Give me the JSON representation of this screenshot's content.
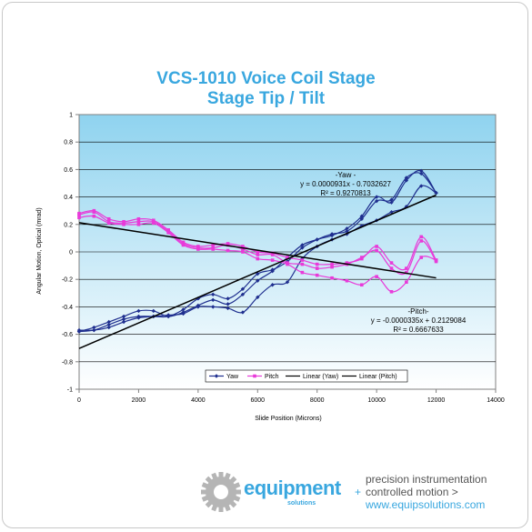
{
  "chart_data": {
    "type": "line",
    "title": "VCS-1010 Voice Coil Stage",
    "subtitle": "Stage Tip / Tilt",
    "xlabel": "Slide Position (Microns)",
    "ylabel": "Angular Motion, Optical (mrad)",
    "xlim": [
      0,
      14000
    ],
    "ylim": [
      -1,
      1
    ],
    "xticks": [
      0,
      2000,
      4000,
      6000,
      8000,
      10000,
      12000,
      14000
    ],
    "yticks": [
      -1,
      -0.8,
      -0.6,
      -0.4,
      -0.2,
      0,
      0.2,
      0.4,
      0.6,
      0.8,
      1
    ],
    "grid": true,
    "legend_position": "bottom-center",
    "legend": [
      "Yaw",
      "Pitch",
      "Linear (Yaw)",
      "Linear (Pitch)"
    ],
    "series": [
      {
        "name": "Yaw",
        "color": "#1f2f8f",
        "x": [
          0,
          500,
          1000,
          1500,
          2000,
          2500,
          3000,
          3500,
          4000,
          4500,
          5000,
          5500,
          6000,
          6500,
          7000,
          7500,
          8000,
          8500,
          9000,
          9500,
          10000,
          10500,
          11000,
          11500,
          12000
        ],
        "y": [
          -0.58,
          -0.55,
          -0.51,
          -0.47,
          -0.43,
          -0.43,
          -0.47,
          -0.44,
          -0.39,
          -0.35,
          -0.38,
          -0.31,
          -0.21,
          -0.14,
          -0.04,
          0.05,
          0.09,
          0.12,
          0.17,
          0.26,
          0.4,
          0.36,
          0.52,
          0.59,
          0.43
        ]
      },
      {
        "name": "Yaw",
        "color": "#1f2f8f",
        "x": [
          0,
          500,
          1000,
          1500,
          2000,
          2500,
          3000,
          3500,
          4000,
          4500,
          5000,
          5500,
          6000,
          6500,
          7000,
          7500,
          8000,
          8500,
          9000,
          9500,
          10000,
          10500,
          11000,
          11500,
          12000
        ],
        "y": [
          -0.58,
          -0.57,
          -0.53,
          -0.49,
          -0.47,
          -0.47,
          -0.47,
          -0.42,
          -0.34,
          -0.31,
          -0.34,
          -0.27,
          -0.16,
          -0.13,
          -0.07,
          0.03,
          0.09,
          0.13,
          0.15,
          0.24,
          0.37,
          0.38,
          0.54,
          0.57,
          0.43
        ]
      },
      {
        "name": "Yaw",
        "color": "#1f2f8f",
        "x": [
          0,
          500,
          1000,
          1500,
          2000,
          2500,
          3000,
          3500,
          4000,
          4500,
          5000,
          5500,
          6000,
          6500,
          7000,
          7500,
          8000,
          8500,
          9000,
          9500,
          10000,
          10500,
          11000,
          11500,
          12000
        ],
        "y": [
          -0.57,
          -0.57,
          -0.55,
          -0.51,
          -0.48,
          -0.47,
          -0.46,
          -0.45,
          -0.4,
          -0.4,
          -0.41,
          -0.44,
          -0.33,
          -0.24,
          -0.22,
          -0.05,
          0.04,
          0.09,
          0.13,
          0.19,
          0.23,
          0.29,
          0.33,
          0.48,
          0.43
        ]
      },
      {
        "name": "Pitch",
        "color": "#e83ad9",
        "x": [
          0,
          500,
          1000,
          1500,
          2000,
          2500,
          3000,
          3500,
          4000,
          4500,
          5000,
          5500,
          6000,
          6500,
          7000,
          7500,
          8000,
          8500,
          9000,
          9500,
          10000,
          10500,
          11000,
          11500,
          12000
        ],
        "y": [
          0.28,
          0.3,
          0.24,
          0.22,
          0.24,
          0.23,
          0.16,
          0.07,
          0.04,
          0.05,
          0.06,
          0.04,
          0.0,
          -0.01,
          -0.04,
          -0.06,
          -0.09,
          -0.09,
          -0.08,
          -0.05,
          0.04,
          -0.08,
          -0.12,
          0.11,
          -0.06
        ]
      },
      {
        "name": "Pitch",
        "color": "#e83ad9",
        "x": [
          0,
          500,
          1000,
          1500,
          2000,
          2500,
          3000,
          3500,
          4000,
          4500,
          5000,
          5500,
          6000,
          6500,
          7000,
          7500,
          8000,
          8500,
          9000,
          9500,
          10000,
          10500,
          11000,
          11500,
          12000
        ],
        "y": [
          0.27,
          0.29,
          0.22,
          0.21,
          0.22,
          0.22,
          0.15,
          0.06,
          0.03,
          0.03,
          0.05,
          0.02,
          -0.02,
          -0.02,
          -0.08,
          -0.09,
          -0.12,
          -0.11,
          -0.09,
          -0.04,
          0.01,
          -0.12,
          -0.15,
          0.08,
          -0.07
        ]
      },
      {
        "name": "Pitch",
        "color": "#e83ad9",
        "x": [
          0,
          500,
          1000,
          1500,
          2000,
          2500,
          3000,
          3500,
          4000,
          4500,
          5000,
          5500,
          6000,
          6500,
          7000,
          7500,
          8000,
          8500,
          9000,
          9500,
          10000,
          10500,
          11000,
          11500,
          12000
        ],
        "y": [
          0.25,
          0.26,
          0.21,
          0.2,
          0.2,
          0.21,
          0.14,
          0.05,
          0.02,
          0.02,
          0.01,
          0.0,
          -0.05,
          -0.06,
          -0.09,
          -0.15,
          -0.17,
          -0.19,
          -0.21,
          -0.24,
          -0.18,
          -0.29,
          -0.22,
          -0.04,
          -0.06
        ]
      },
      {
        "name": "Linear (Yaw)",
        "color": "#000000",
        "x": [
          0,
          12000
        ],
        "y": [
          -0.7033,
          0.4139
        ]
      },
      {
        "name": "Linear (Pitch)",
        "color": "#000000",
        "x": [
          0,
          12000
        ],
        "y": [
          0.2129,
          -0.1891
        ]
      }
    ],
    "annotations": {
      "yaw": [
        "-Yaw -",
        "y = 0.0000931x - 0.7032627",
        "R² = 0.9270813"
      ],
      "pitch": [
        "-Pitch-",
        "y = -0.0000335x + 0.2129084",
        "R² = 0.6667633"
      ]
    }
  },
  "footer": {
    "brand": "equipment",
    "brand_sub": "solutions",
    "line1": "precision instrumentation",
    "plus": "+",
    "line2": "controlled motion >",
    "line3": "www.equipsolutions.com",
    "colors": {
      "blue": "#39a7df",
      "gray": "#555555",
      "gear": "#b5b5b5"
    }
  }
}
